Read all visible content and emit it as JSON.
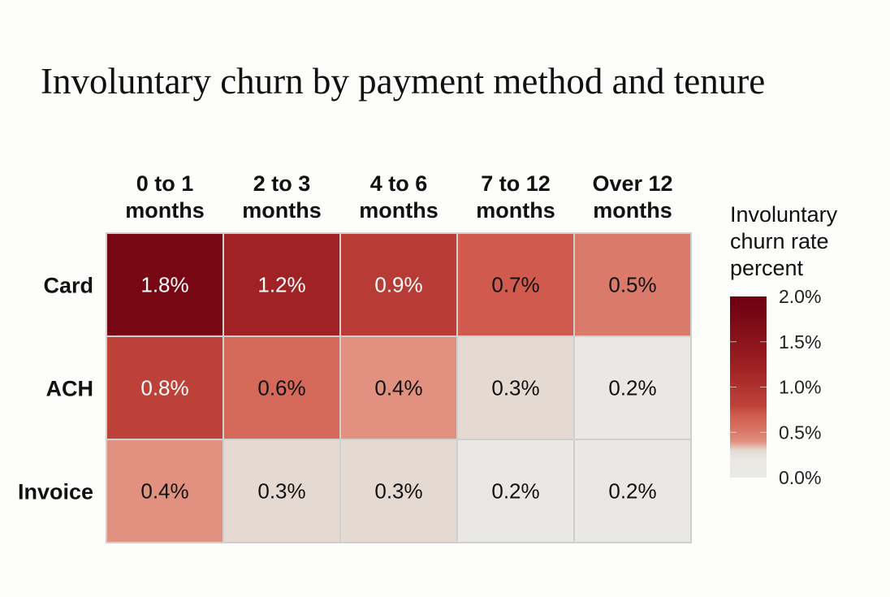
{
  "chart_data": {
    "type": "heatmap",
    "title": "Involuntary churn by payment method and tenure",
    "columns": [
      [
        "0 to 1",
        "months"
      ],
      [
        "2 to 3",
        "months"
      ],
      [
        "4 to 6",
        "months"
      ],
      [
        "7 to 12",
        "months"
      ],
      [
        "Over 12",
        "months"
      ]
    ],
    "rows": [
      "Card",
      "ACH",
      "Invoice"
    ],
    "values": [
      [
        1.8,
        1.2,
        0.9,
        0.7,
        0.5
      ],
      [
        0.8,
        0.6,
        0.4,
        0.3,
        0.2
      ],
      [
        0.4,
        0.3,
        0.3,
        0.2,
        0.2
      ]
    ],
    "value_labels": [
      [
        "1.8%",
        "1.2%",
        "0.9%",
        "0.7%",
        "0.5%"
      ],
      [
        "0.8%",
        "0.6%",
        "0.4%",
        "0.3%",
        "0.2%"
      ],
      [
        "0.4%",
        "0.3%",
        "0.3%",
        "0.2%",
        "0.2%"
      ]
    ],
    "legend": {
      "title": [
        "Involuntary",
        "churn rate",
        "percent"
      ],
      "range": [
        0,
        2.0
      ],
      "ticks": [
        2.0,
        1.5,
        1.0,
        0.5,
        0.0
      ],
      "tick_labels": [
        "2.0%",
        "1.5%",
        "1.0%",
        "0.5%",
        "0.0%"
      ],
      "placement": "right"
    },
    "colorscale": [
      [
        0.0,
        "#ebeae6"
      ],
      [
        0.2,
        "#eae8e4"
      ],
      [
        0.3,
        "#e4dad2"
      ],
      [
        0.4,
        "#e2907f"
      ],
      [
        0.5,
        "#d97a6a"
      ],
      [
        0.6,
        "#d4695a"
      ],
      [
        0.7,
        "#cf5a4d"
      ],
      [
        0.8,
        "#bd4039"
      ],
      [
        0.9,
        "#b83b36"
      ],
      [
        1.2,
        "#a02224"
      ],
      [
        1.8,
        "#780714"
      ],
      [
        2.0,
        "#6e0010"
      ]
    ],
    "text_colors": {
      "dark": "#111111",
      "light": "#ffffff"
    }
  }
}
